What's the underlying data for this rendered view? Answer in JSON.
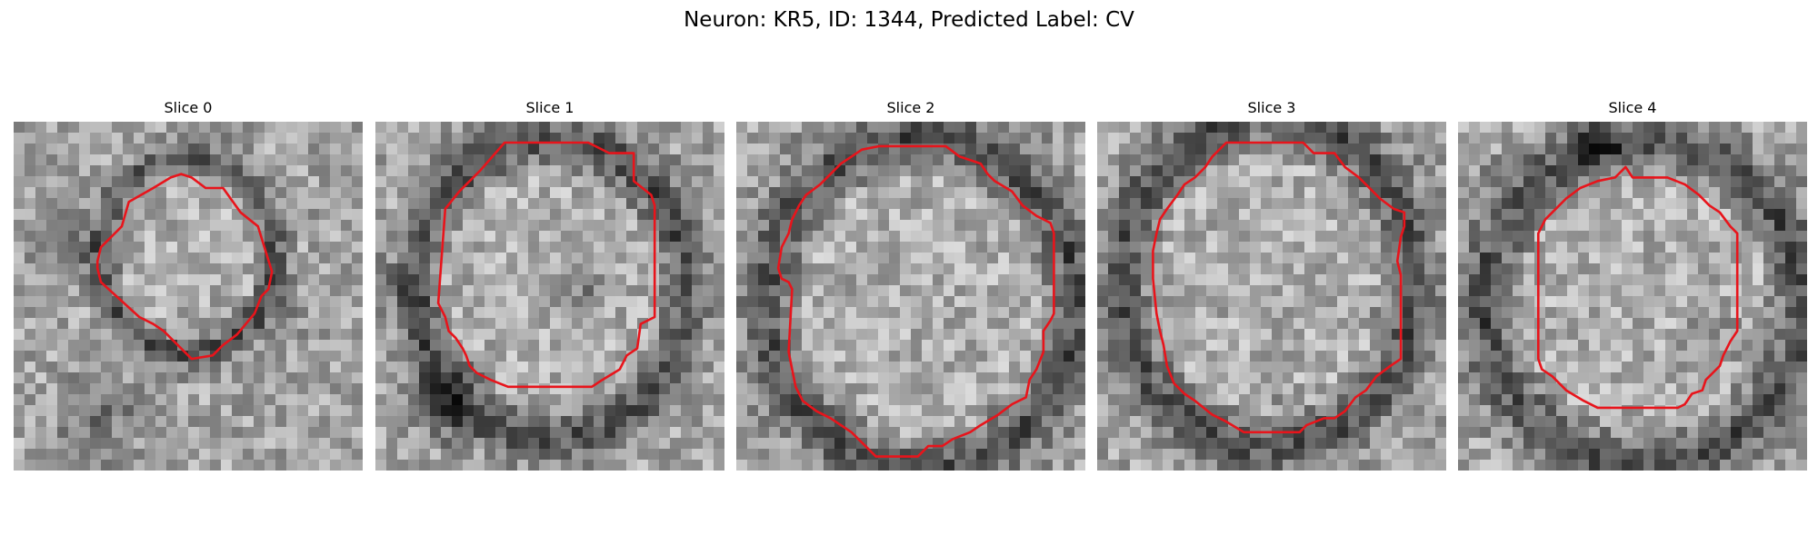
{
  "figure": {
    "title": "Neuron: KR5, ID: 1344, Predicted Label: CV"
  },
  "panels": [
    {
      "title": "Slice 0"
    },
    {
      "title": "Slice 1"
    },
    {
      "title": "Slice 2"
    },
    {
      "title": "Slice 3"
    },
    {
      "title": "Slice 4"
    }
  ],
  "colors": {
    "contour": "#e8141b",
    "background": "#ffffff"
  }
}
